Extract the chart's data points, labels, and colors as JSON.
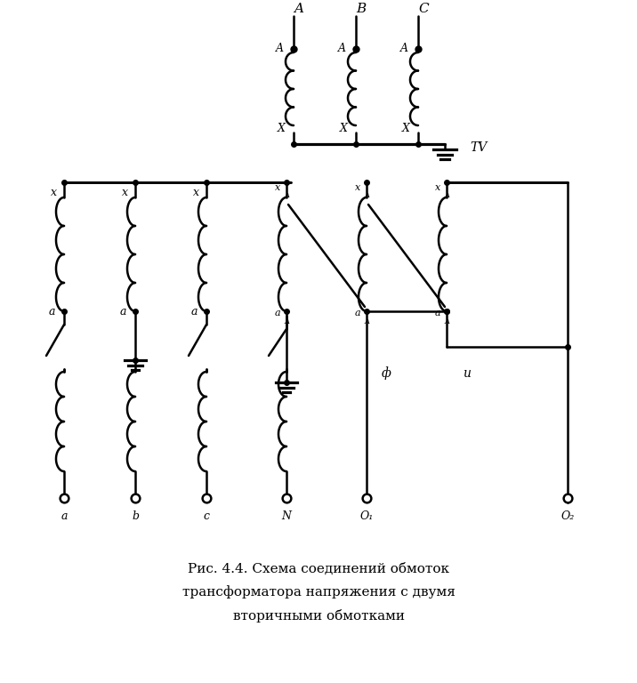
{
  "background_color": "#ffffff",
  "line_color": "#000000",
  "line_width": 1.8,
  "fig_width": 7.16,
  "fig_height": 7.68,
  "dpi": 100,
  "caption_line1": "Рис. 4.4. Схема соединений обмоток",
  "caption_line2": "трансформатора напряжения с двумя",
  "caption_line3": "вторичными обмотками",
  "primary_phase_labels": [
    "A",
    "B",
    "C"
  ],
  "primary_A_label": "A",
  "primary_X_label": "X",
  "TV_label": "TV",
  "output_labels": [
    "a",
    "b",
    "c",
    "N",
    "O₁",
    "O₂"
  ],
  "phi_label": "ф",
  "u_label": "и"
}
